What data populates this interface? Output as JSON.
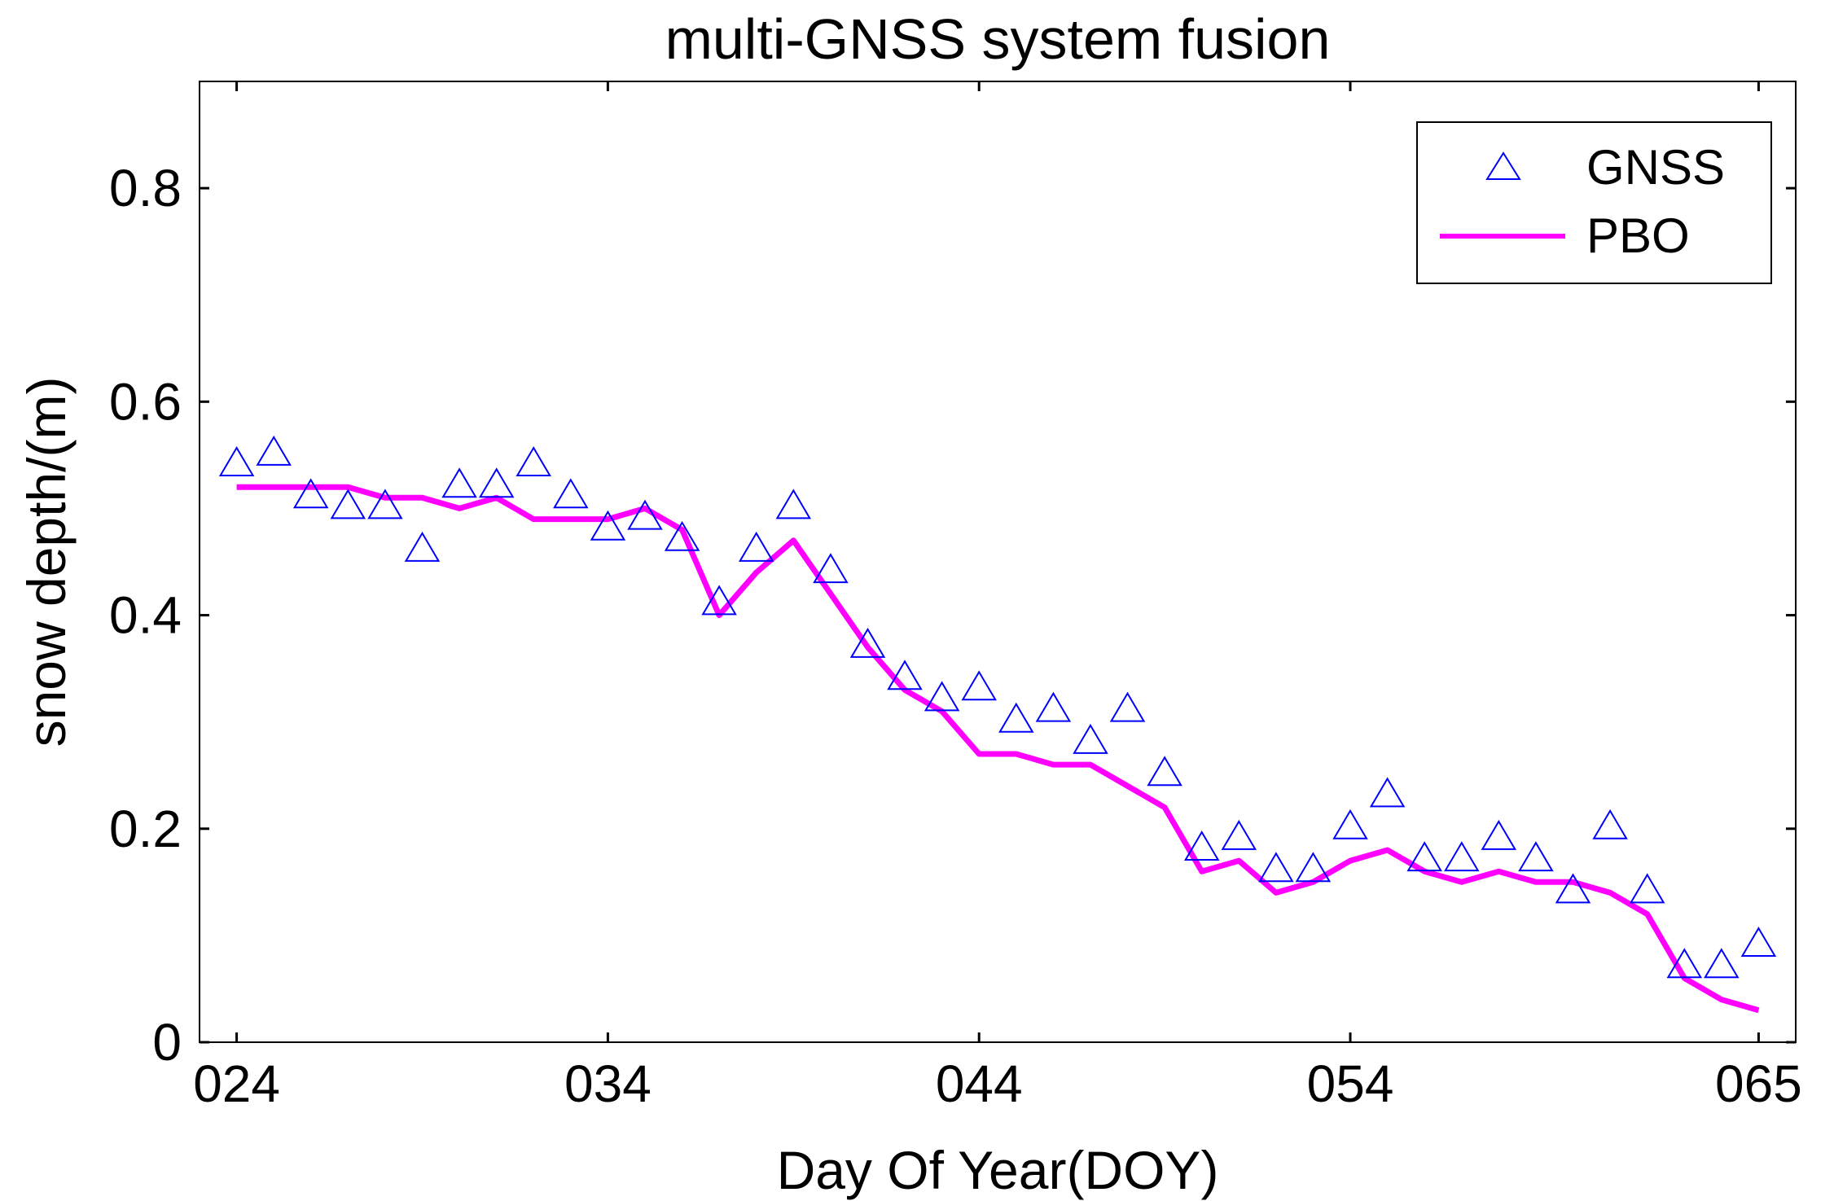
{
  "chart_data": {
    "type": "line",
    "title": "multi-GNSS system fusion",
    "xlabel": "Day Of Year(DOY)",
    "ylabel": "snow depth/(m)",
    "xlim": [
      23,
      66
    ],
    "ylim": [
      0,
      0.9
    ],
    "x_ticks": [
      {
        "value": 24,
        "label": "024"
      },
      {
        "value": 34,
        "label": "034"
      },
      {
        "value": 44,
        "label": "044"
      },
      {
        "value": 54,
        "label": "054"
      },
      {
        "value": 65,
        "label": "065"
      }
    ],
    "y_ticks": [
      {
        "value": 0,
        "label": "0"
      },
      {
        "value": 0.2,
        "label": "0.2"
      },
      {
        "value": 0.4,
        "label": "0.4"
      },
      {
        "value": 0.6,
        "label": "0.6"
      },
      {
        "value": 0.8,
        "label": "0.8"
      }
    ],
    "grid": false,
    "legend_position": "top-right",
    "series": [
      {
        "name": "GNSS",
        "style": "triangle-markers",
        "color": "#0000ff",
        "points": [
          [
            24,
            0.54
          ],
          [
            25,
            0.55
          ],
          [
            26,
            0.51
          ],
          [
            27,
            0.5
          ],
          [
            28,
            0.5
          ],
          [
            29,
            0.46
          ],
          [
            30,
            0.52
          ],
          [
            31,
            0.52
          ],
          [
            32,
            0.54
          ],
          [
            33,
            0.51
          ],
          [
            34,
            0.48
          ],
          [
            35,
            0.49
          ],
          [
            36,
            0.47
          ],
          [
            37,
            0.41
          ],
          [
            38,
            0.46
          ],
          [
            39,
            0.5
          ],
          [
            40,
            0.44
          ],
          [
            41,
            0.37
          ],
          [
            42,
            0.34
          ],
          [
            43,
            0.32
          ],
          [
            44,
            0.33
          ],
          [
            45,
            0.3
          ],
          [
            46,
            0.31
          ],
          [
            47,
            0.28
          ],
          [
            48,
            0.31
          ],
          [
            49,
            0.25
          ],
          [
            50,
            0.18
          ],
          [
            51,
            0.19
          ],
          [
            52,
            0.16
          ],
          [
            53,
            0.16
          ],
          [
            54,
            0.2
          ],
          [
            55,
            0.23
          ],
          [
            56,
            0.17
          ],
          [
            57,
            0.17
          ],
          [
            58,
            0.19
          ],
          [
            59,
            0.17
          ],
          [
            60,
            0.14
          ],
          [
            61,
            0.2
          ],
          [
            62,
            0.14
          ],
          [
            63,
            0.07
          ],
          [
            64,
            0.07
          ],
          [
            65,
            0.09
          ]
        ]
      },
      {
        "name": "PBO",
        "style": "line",
        "color": "#ff00ff",
        "points": [
          [
            24,
            0.52
          ],
          [
            25,
            0.52
          ],
          [
            26,
            0.52
          ],
          [
            27,
            0.52
          ],
          [
            28,
            0.51
          ],
          [
            29,
            0.51
          ],
          [
            30,
            0.5
          ],
          [
            31,
            0.51
          ],
          [
            32,
            0.49
          ],
          [
            33,
            0.49
          ],
          [
            34,
            0.49
          ],
          [
            35,
            0.5
          ],
          [
            36,
            0.48
          ],
          [
            37,
            0.4
          ],
          [
            38,
            0.44
          ],
          [
            39,
            0.47
          ],
          [
            40,
            0.42
          ],
          [
            41,
            0.37
          ],
          [
            42,
            0.33
          ],
          [
            43,
            0.31
          ],
          [
            44,
            0.27
          ],
          [
            45,
            0.27
          ],
          [
            46,
            0.26
          ],
          [
            47,
            0.26
          ],
          [
            48,
            0.24
          ],
          [
            49,
            0.22
          ],
          [
            50,
            0.16
          ],
          [
            51,
            0.17
          ],
          [
            52,
            0.14
          ],
          [
            53,
            0.15
          ],
          [
            54,
            0.17
          ],
          [
            55,
            0.18
          ],
          [
            56,
            0.16
          ],
          [
            57,
            0.15
          ],
          [
            58,
            0.16
          ],
          [
            59,
            0.15
          ],
          [
            60,
            0.15
          ],
          [
            61,
            0.14
          ],
          [
            62,
            0.12
          ],
          [
            63,
            0.06
          ],
          [
            64,
            0.04
          ],
          [
            65,
            0.03
          ]
        ]
      }
    ]
  }
}
